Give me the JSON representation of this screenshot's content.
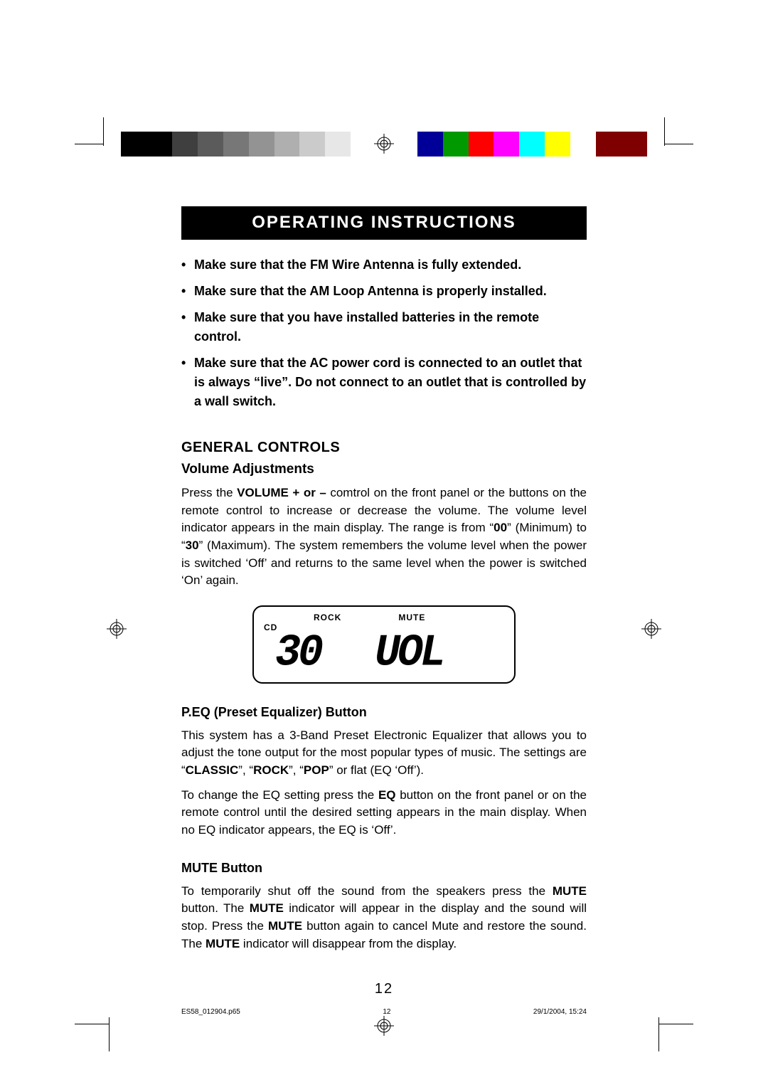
{
  "colorbar": [
    "#000000",
    "#000000",
    "#3f3f3f",
    "#5b5b5b",
    "#777777",
    "#939393",
    "#afafaf",
    "#cbcbcb",
    "#e7e7e7",
    "#ffffff",
    "#ffffff",
    "#000099",
    "#009900",
    "#ff0000",
    "#ff00ff",
    "#00ffff",
    "#ffff00",
    "#ffffff",
    "#7f0000",
    "#7f0000"
  ],
  "banner": "OPERATING INSTRUCTIONS",
  "bullets": [
    "Make sure that the FM Wire Antenna is fully extended.",
    "Make sure that the AM Loop Antenna is properly installed.",
    "Make sure that you have installed batteries in the remote control.",
    "Make sure that the AC power cord is connected to an outlet that is always “live”. Do not connect to an outlet that is controlled by a wall switch."
  ],
  "section_general": "GENERAL CONTROLS",
  "sub_volume": "Volume Adjustments",
  "para_volume_pre": "Press the ",
  "para_volume_bold1": "VOLUME + or –",
  "para_volume_mid1": " comtrol on the front panel or the buttons on the remote control to increase or decrease the volume. The volume level indicator appears in the main display. The range is from “",
  "para_volume_bold2": "00",
  "para_volume_mid2": "” (Minimum) to “",
  "para_volume_bold3": "30",
  "para_volume_mid3": "” (Maximum). The system remembers the volume level when the power is switched ‘Off’ and returns to the same level when the power is switched ‘On’ again.",
  "lcd": {
    "cd": "CD",
    "rock": "ROCK",
    "mute": "MUTE",
    "num": "30",
    "vol": "UOL"
  },
  "sub_peq": "P.EQ (Preset Equalizer) Button",
  "para_peq_1a": "This system has a 3-Band Preset Electronic Equalizer that allows you to adjust the tone output for the most popular types of music. The settings are “",
  "para_peq_b1": "CLASSIC",
  "para_peq_1b": "”, “",
  "para_peq_b2": "ROCK",
  "para_peq_1c": "”, “",
  "para_peq_b3": "POP",
  "para_peq_1d": "” or flat (EQ ‘Off’).",
  "para_peq_2a": "To change the EQ setting press the ",
  "para_peq_2bold": "EQ",
  "para_peq_2b": " button on the front panel or on the remote control until the desired setting appears in the main display. When no EQ indicator appears, the EQ is ‘Off’.",
  "sub_mute": "MUTE Button",
  "para_mute_a": "To temporarily shut off the sound from the speakers press the ",
  "para_mute_b1": "MUTE",
  "para_mute_b": " button. The ",
  "para_mute_b2": "MUTE",
  "para_mute_c": " indicator will appear in the display and the sound will stop. Press the ",
  "para_mute_b3": "MUTE",
  "para_mute_d": " button again to cancel Mute and restore the sound. The ",
  "para_mute_b4": "MUTE",
  "para_mute_e": " indicator will disappear from the display.",
  "page_number": "12",
  "footer": {
    "file": "ES58_012904.p65",
    "page": "12",
    "date": "29/1/2004, 15:24"
  }
}
